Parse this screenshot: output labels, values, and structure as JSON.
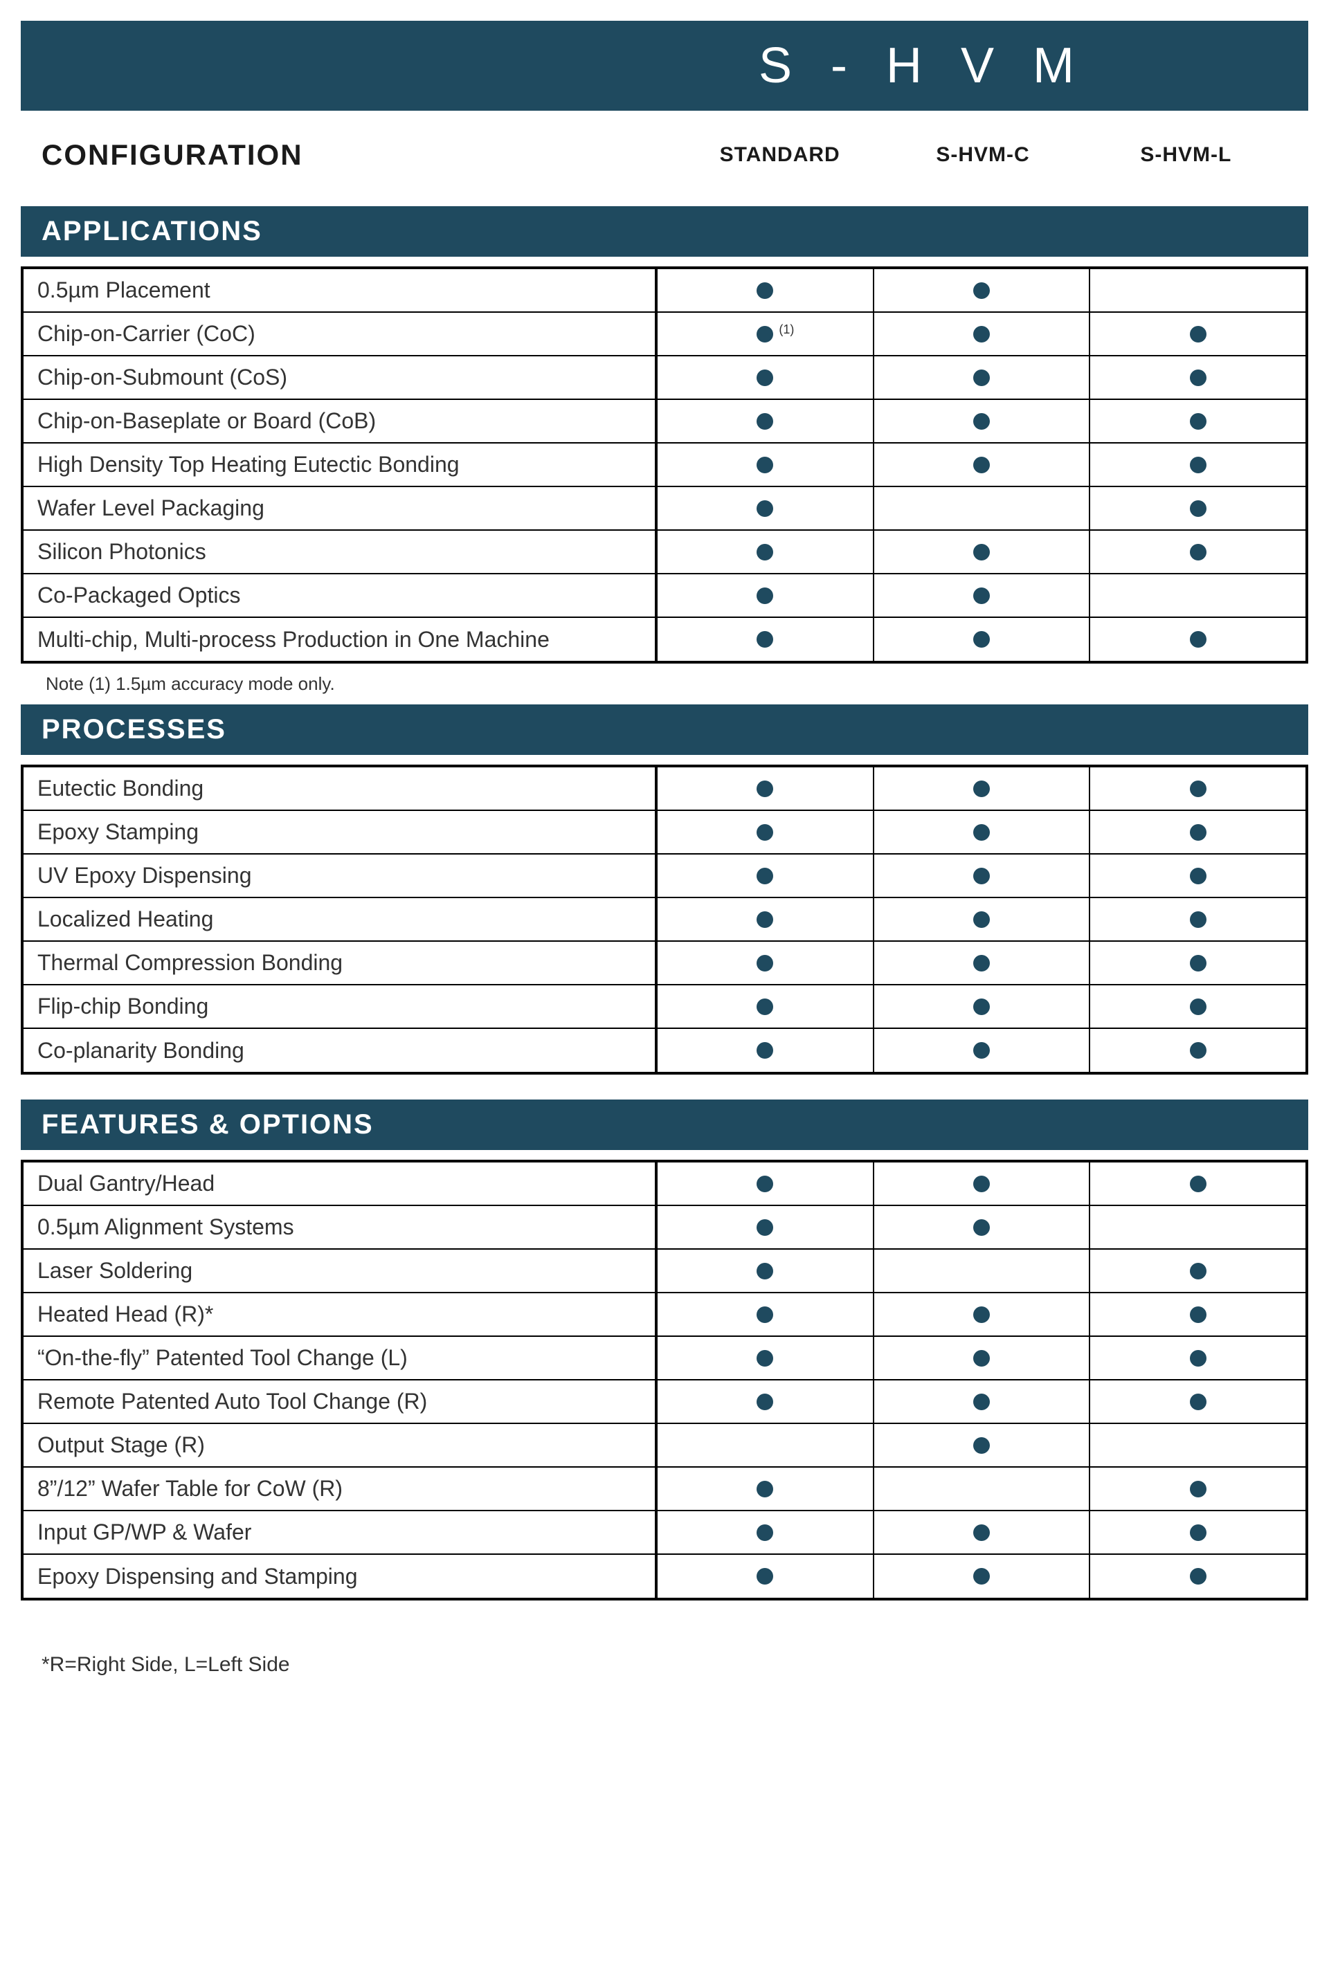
{
  "brand": "S - H V M",
  "config_title": "CONFIGURATION",
  "columns": [
    "STANDARD",
    "S-HVM-C",
    "S-HVM-L"
  ],
  "dot_color": "#1f4a5f",
  "section_bg": "#1f4a5f",
  "sections": [
    {
      "title": "APPLICATIONS",
      "rows": [
        {
          "label": "0.5µm Placement",
          "cells": [
            true,
            true,
            false
          ],
          "sup": [
            null,
            null,
            null
          ]
        },
        {
          "label": "Chip-on-Carrier (CoC)",
          "cells": [
            true,
            true,
            true
          ],
          "sup": [
            "(1)",
            null,
            null
          ]
        },
        {
          "label": "Chip-on-Submount (CoS)",
          "cells": [
            true,
            true,
            true
          ],
          "sup": [
            null,
            null,
            null
          ]
        },
        {
          "label": "Chip-on-Baseplate or Board (CoB)",
          "cells": [
            true,
            true,
            true
          ],
          "sup": [
            null,
            null,
            null
          ]
        },
        {
          "label": "High Density Top Heating Eutectic Bonding",
          "cells": [
            true,
            true,
            true
          ],
          "sup": [
            null,
            null,
            null
          ]
        },
        {
          "label": "Wafer Level Packaging",
          "cells": [
            true,
            false,
            true
          ],
          "sup": [
            null,
            null,
            null
          ]
        },
        {
          "label": "Silicon Photonics",
          "cells": [
            true,
            true,
            true
          ],
          "sup": [
            null,
            null,
            null
          ]
        },
        {
          "label": "Co-Packaged Optics",
          "cells": [
            true,
            true,
            false
          ],
          "sup": [
            null,
            null,
            null
          ]
        },
        {
          "label": "Multi-chip, Multi-process Production in One Machine",
          "cells": [
            true,
            true,
            true
          ],
          "sup": [
            null,
            null,
            null
          ]
        }
      ],
      "note": "Note (1)  1.5µm accuracy mode only."
    },
    {
      "title": "PROCESSES",
      "rows": [
        {
          "label": "Eutectic Bonding",
          "cells": [
            true,
            true,
            true
          ],
          "sup": [
            null,
            null,
            null
          ]
        },
        {
          "label": "Epoxy Stamping",
          "cells": [
            true,
            true,
            true
          ],
          "sup": [
            null,
            null,
            null
          ]
        },
        {
          "label": "UV Epoxy Dispensing",
          "cells": [
            true,
            true,
            true
          ],
          "sup": [
            null,
            null,
            null
          ]
        },
        {
          "label": "Localized Heating",
          "cells": [
            true,
            true,
            true
          ],
          "sup": [
            null,
            null,
            null
          ]
        },
        {
          "label": "Thermal Compression Bonding",
          "cells": [
            true,
            true,
            true
          ],
          "sup": [
            null,
            null,
            null
          ]
        },
        {
          "label": "Flip-chip Bonding",
          "cells": [
            true,
            true,
            true
          ],
          "sup": [
            null,
            null,
            null
          ]
        },
        {
          "label": "Co-planarity Bonding",
          "cells": [
            true,
            true,
            true
          ],
          "sup": [
            null,
            null,
            null
          ]
        }
      ],
      "note": null
    },
    {
      "title": "FEATURES & OPTIONS",
      "rows": [
        {
          "label": "Dual Gantry/Head",
          "cells": [
            true,
            true,
            true
          ],
          "sup": [
            null,
            null,
            null
          ]
        },
        {
          "label": "0.5µm Alignment Systems",
          "cells": [
            true,
            true,
            false
          ],
          "sup": [
            null,
            null,
            null
          ]
        },
        {
          "label": "Laser Soldering",
          "cells": [
            true,
            false,
            true
          ],
          "sup": [
            null,
            null,
            null
          ]
        },
        {
          "label": "Heated Head (R)*",
          "cells": [
            true,
            true,
            true
          ],
          "sup": [
            null,
            null,
            null
          ]
        },
        {
          "label": "“On-the-fly” Patented Tool Change (L)",
          "cells": [
            true,
            true,
            true
          ],
          "sup": [
            null,
            null,
            null
          ]
        },
        {
          "label": "Remote Patented Auto Tool Change (R)",
          "cells": [
            true,
            true,
            true
          ],
          "sup": [
            null,
            null,
            null
          ]
        },
        {
          "label": "Output Stage (R)",
          "cells": [
            false,
            true,
            false
          ],
          "sup": [
            null,
            null,
            null
          ]
        },
        {
          "label": "8”/12” Wafer Table for CoW (R)",
          "cells": [
            true,
            false,
            true
          ],
          "sup": [
            null,
            null,
            null
          ]
        },
        {
          "label": "Input GP/WP & Wafer",
          "cells": [
            true,
            true,
            true
          ],
          "sup": [
            null,
            null,
            null
          ]
        },
        {
          "label": "Epoxy Dispensing and Stamping",
          "cells": [
            true,
            true,
            true
          ],
          "sup": [
            null,
            null,
            null
          ]
        }
      ],
      "note": null
    }
  ],
  "footnote": "*R=Right Side, L=Left Side"
}
